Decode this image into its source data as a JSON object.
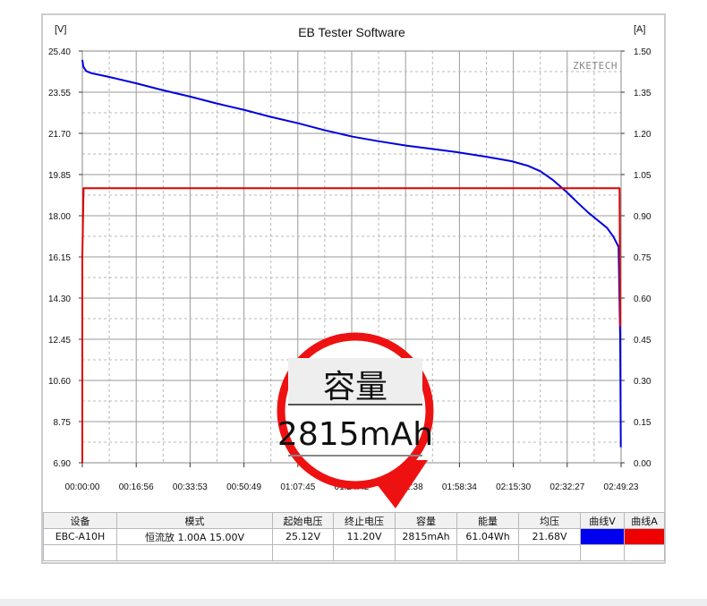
{
  "chart_data": {
    "type": "line",
    "title": "EB Tester Software",
    "watermark": "ZKETECH",
    "y_left": {
      "unit": "[V]",
      "ylim": [
        6.9,
        25.4
      ],
      "ticks": [
        "25.40",
        "23.55",
        "21.70",
        "19.85",
        "18.00",
        "16.15",
        "14.30",
        "12.45",
        "10.60",
        "8.75",
        "6.90"
      ]
    },
    "y_right": {
      "unit": "[A]",
      "ylim": [
        0.0,
        1.5
      ],
      "ticks": [
        "1.50",
        "1.35",
        "1.20",
        "1.05",
        "0.90",
        "0.75",
        "0.60",
        "0.45",
        "0.30",
        "0.15",
        "0.00"
      ]
    },
    "x_ticks": [
      "00:00:00",
      "00:16:56",
      "00:33:53",
      "00:50:49",
      "01:07:45",
      "01:24:42",
      "01:41:38",
      "01:58:34",
      "02:15:30",
      "02:32:27",
      "02:49:23"
    ],
    "xlim_minutes": [
      0,
      169.38
    ],
    "grid": true,
    "series": [
      {
        "color": "#0000dd",
        "axis": "left",
        "x": [
          0,
          0.3,
          1.2,
          3,
          8,
          17,
          25,
          34,
          42,
          51,
          59,
          68,
          76,
          85,
          93,
          102,
          110,
          118,
          127,
          135,
          140,
          144,
          148,
          152,
          156,
          159,
          162,
          165,
          167,
          168.6,
          169.1,
          169.3
        ],
        "values": [
          25.0,
          24.7,
          24.5,
          24.4,
          24.25,
          23.95,
          23.65,
          23.35,
          23.05,
          22.75,
          22.45,
          22.15,
          21.85,
          21.55,
          21.35,
          21.15,
          21.0,
          20.85,
          20.65,
          20.45,
          20.25,
          20.0,
          19.6,
          19.1,
          18.55,
          18.15,
          17.8,
          17.45,
          17.05,
          16.6,
          12.45,
          7.6
        ]
      },
      {
        "color": "#dd0000",
        "axis": "right",
        "x": [
          0,
          0,
          0.4,
          168.9,
          169.1,
          169.3
        ],
        "values": [
          0.0,
          0.75,
          1.0,
          1.0,
          0.5,
          0.5
        ]
      }
    ]
  },
  "table": {
    "headers": [
      "设备",
      "模式",
      "起始电压",
      "终止电压",
      "容量",
      "能量",
      "均压",
      "曲线V",
      "曲线A"
    ],
    "row": [
      "EBC-A10H",
      "恒流放 1.00A 15.00V",
      "25.12V",
      "11.20V",
      "2815mAh",
      "61.04Wh",
      "21.68V",
      "",
      ""
    ]
  },
  "callout": {
    "label": "容量",
    "value": "2815mAh",
    "color": "#ee1111"
  }
}
